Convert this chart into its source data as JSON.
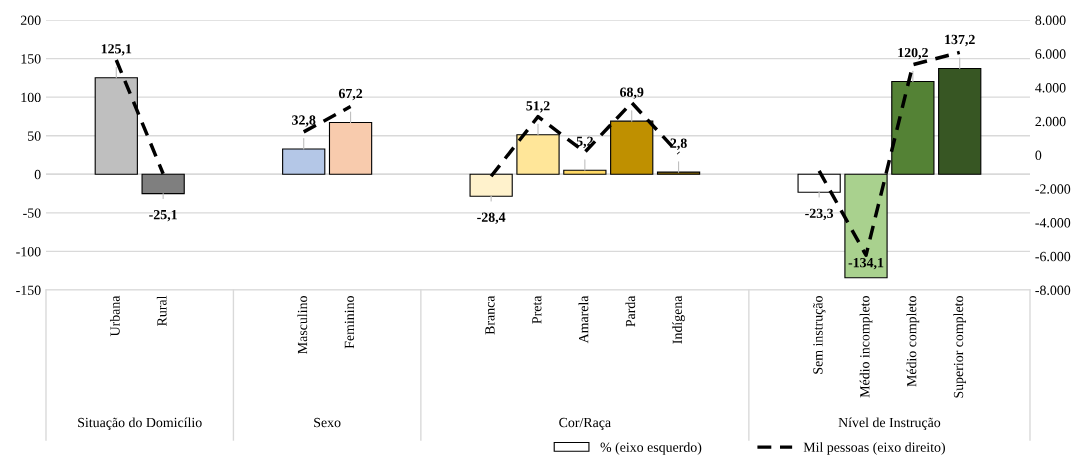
{
  "chart_data": {
    "type": "bar",
    "categories": [
      null,
      "Urbana",
      "Rural",
      null,
      null,
      "Masculino",
      "Feminino",
      null,
      null,
      "Branca",
      "Preta",
      "Amarela",
      "Parda",
      "Indígena",
      null,
      null,
      "Sem instrução",
      "Médio incompleto",
      "Médio completo",
      "Superior completo",
      null
    ],
    "annotations": [
      "Situação do Domicílio",
      "Sexo",
      "Cor/Raça",
      "Nível de Instrução"
    ],
    "series": [
      {
        "name": "% (eixo esquerdo)",
        "color": "#ffffff",
        "colors": [
          "#ffffff",
          "#bfbfbf",
          "#7f7f7f",
          "#ffffff",
          "#ffffff",
          "#b4c7e7",
          "#f8cbad",
          "#ffffff",
          "#ffffff",
          "#fff2cc",
          "#ffe699",
          "#ffd966",
          "#bf9000",
          "#7f6000",
          "#ffffff",
          "#ffffff",
          "#ffffff",
          "#a9d18e",
          "#548235",
          "#375623",
          "#ffffff"
        ],
        "values": [
          null,
          125.1,
          -25.1,
          null,
          null,
          32.8,
          67.2,
          null,
          null,
          -28.4,
          51.2,
          5.2,
          68.9,
          2.8,
          null,
          null,
          -23.3,
          -134.1,
          120.2,
          137.2,
          null
        ],
        "value_labels": [
          null,
          "125,1",
          "-25,1",
          null,
          null,
          "32,8",
          "67,2",
          null,
          null,
          "-28,4",
          "51,2",
          "5,2",
          "68,9",
          "2,8",
          null,
          null,
          "-23,3",
          "-134,1",
          "120,2",
          "137,2",
          null
        ]
      },
      {
        "name": "Mil pessoas (eixo direito)",
        "type": "line",
        "axis": "y2",
        "color": "#000000",
        "line_style": "dashed",
        "marker": "none",
        "values": [
          null,
          5630,
          -1110,
          null,
          null,
          1370,
          2870,
          null,
          null,
          -1260,
          2270,
          170,
          3100,
          100,
          null,
          null,
          -940,
          -5940,
          5350,
          6080,
          null
        ]
      }
    ],
    "ylim": [
      -150,
      200
    ],
    "yticks": [
      -150,
      -100,
      -50,
      0,
      50,
      100,
      150,
      200
    ],
    "y2lim": [
      -8000,
      8000
    ],
    "y2ticks": [
      {
        "value": -8000,
        "label": "-8.000"
      },
      {
        "value": -6000,
        "label": "-6.000"
      },
      {
        "value": -4000,
        "label": "-4.000"
      },
      {
        "value": -2000,
        "label": "-2.000"
      },
      0,
      {
        "value": 2000,
        "label": "2.000"
      },
      {
        "value": 4000,
        "label": "4.000"
      },
      {
        "value": 6000,
        "label": "6.000"
      },
      {
        "value": 8000,
        "label": "8.000"
      }
    ],
    "grid": "y",
    "legend": "bottom"
  }
}
